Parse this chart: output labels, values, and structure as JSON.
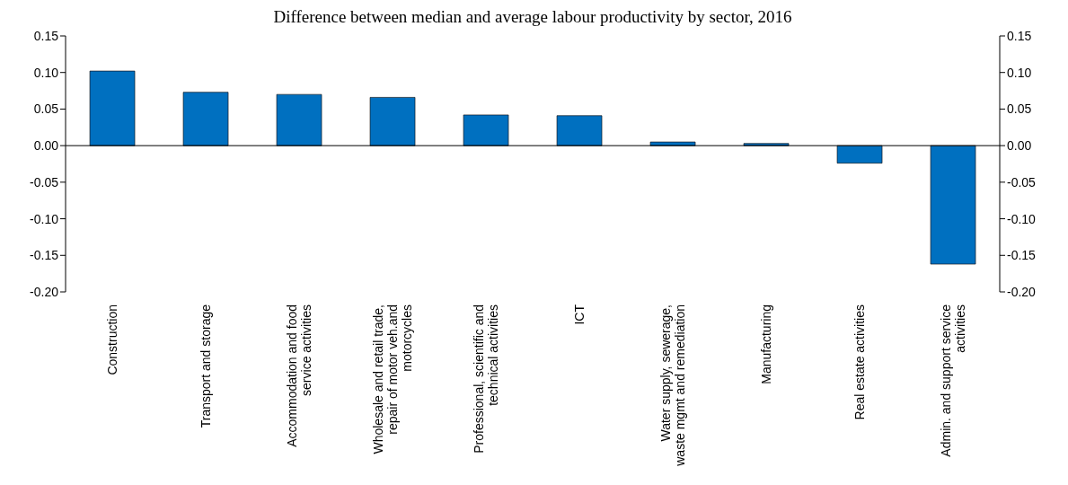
{
  "chart_data": {
    "type": "bar",
    "title": "Difference between median and average labour productivity by sector, 2016",
    "categories": [
      "Construction",
      "Transport and storage",
      "Accommodation and food service activities",
      "Wholesale and retail trade, repair of motor veh.and motorcycles",
      "Professional, scientific and technical activities",
      "ICT",
      "Water supply, sewerage, waste mgmt and remediation",
      "Manufacturing",
      "Real estate activities",
      "Admin. and support service activities"
    ],
    "values": [
      0.102,
      0.073,
      0.07,
      0.066,
      0.042,
      0.041,
      0.005,
      0.003,
      -0.024,
      -0.162
    ],
    "color": "#0070c0",
    "ylim": [
      -0.2,
      0.15
    ],
    "yticks": [
      {
        "value": -0.2,
        "label": "-0.20"
      },
      {
        "value": -0.15,
        "label": "-0.15"
      },
      {
        "value": -0.1,
        "label": "-0.10"
      },
      {
        "value": -0.05,
        "label": "-0.05"
      },
      {
        "value": 0,
        "label": "0.00"
      },
      {
        "value": 0.05,
        "label": "0.05"
      },
      {
        "value": 0.1,
        "label": "0.10"
      },
      {
        "value": 0.15,
        "label": "0.15"
      }
    ],
    "y2lim": [
      -0.2,
      0.15
    ],
    "y2ticks": [
      {
        "value": -0.2,
        "label": "-0.20"
      },
      {
        "value": -0.15,
        "label": "-0.15"
      },
      {
        "value": -0.1,
        "label": "-0.10"
      },
      {
        "value": -0.05,
        "label": "-0.05"
      },
      {
        "value": 0,
        "label": "0.00"
      },
      {
        "value": 0.05,
        "label": "0.05"
      },
      {
        "value": 0.1,
        "label": "0.10"
      },
      {
        "value": 0.15,
        "label": "0.15"
      }
    ],
    "legend": false
  }
}
